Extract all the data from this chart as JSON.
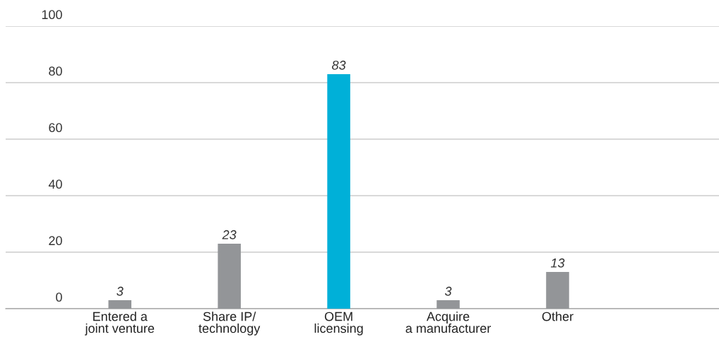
{
  "chart_data": {
    "type": "bar",
    "categories": [
      "Entered a\njoint venture",
      "Share IP/\ntechnology",
      "OEM\nlicensing",
      "Acquire\na manufacturer",
      "Other"
    ],
    "values": [
      3,
      23,
      83,
      3,
      13
    ],
    "colors": [
      "#939598",
      "#939598",
      "#00b0d8",
      "#939598",
      "#939598"
    ],
    "ylim": [
      0,
      100
    ],
    "yticks": [
      0,
      20,
      40,
      60,
      80,
      100
    ],
    "grid": "y",
    "data_labels": true
  }
}
